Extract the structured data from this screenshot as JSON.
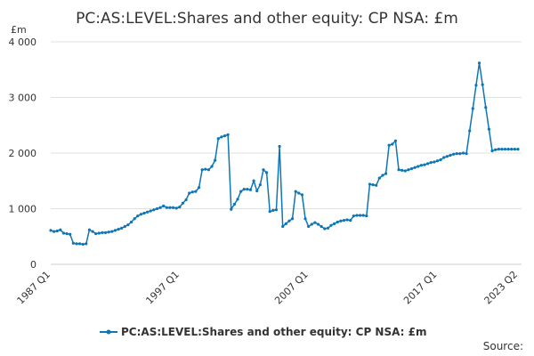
{
  "chart_data": {
    "type": "line",
    "title": "PC:AS:LEVEL:Shares and other equity: CP NSA: £m",
    "y_label": "£m",
    "source": "Source:",
    "categories": [
      "1987 Q1",
      null,
      null,
      null,
      null,
      null,
      null,
      null,
      null,
      null,
      null,
      null,
      null,
      null,
      null,
      null,
      null,
      null,
      null,
      null,
      null,
      null,
      null,
      null,
      null,
      null,
      null,
      null,
      null,
      null,
      null,
      null,
      null,
      null,
      null,
      null,
      null,
      null,
      null,
      null,
      "1997 Q1",
      null,
      null,
      null,
      null,
      null,
      null,
      null,
      null,
      null,
      null,
      null,
      null,
      null,
      null,
      null,
      null,
      null,
      null,
      null,
      null,
      null,
      null,
      null,
      null,
      null,
      null,
      null,
      null,
      null,
      null,
      null,
      null,
      null,
      null,
      null,
      null,
      null,
      null,
      null,
      "2007 Q1",
      null,
      null,
      null,
      null,
      null,
      null,
      null,
      null,
      null,
      null,
      null,
      null,
      null,
      null,
      null,
      null,
      null,
      null,
      null,
      null,
      null,
      null,
      null,
      null,
      null,
      null,
      null,
      null,
      null,
      null,
      null,
      null,
      null,
      null,
      null,
      null,
      null,
      null,
      null,
      "2017 Q1",
      null,
      null,
      null,
      null,
      null,
      null,
      null,
      null,
      null,
      null,
      null,
      null,
      null,
      null,
      null,
      null,
      null,
      null,
      null,
      null,
      null,
      null,
      null,
      null,
      "2023 Q2"
    ],
    "series": [
      {
        "name": "PC:AS:LEVEL:Shares and other equity: CP NSA: £m",
        "color": "#0e76b6",
        "values": [
          610,
          590,
          600,
          620,
          560,
          550,
          540,
          380,
          370,
          370,
          360,
          370,
          620,
          590,
          550,
          560,
          570,
          570,
          580,
          590,
          610,
          630,
          650,
          680,
          710,
          760,
          820,
          870,
          900,
          920,
          940,
          960,
          980,
          1000,
          1020,
          1050,
          1020,
          1020,
          1020,
          1010,
          1030,
          1100,
          1160,
          1280,
          1300,
          1310,
          1380,
          1700,
          1710,
          1700,
          1760,
          1870,
          2260,
          2290,
          2310,
          2330,
          990,
          1080,
          1170,
          1310,
          1350,
          1350,
          1340,
          1500,
          1320,
          1430,
          1700,
          1650,
          950,
          970,
          980,
          2120,
          680,
          730,
          780,
          820,
          1310,
          1280,
          1250,
          820,
          680,
          720,
          750,
          720,
          680,
          640,
          650,
          700,
          730,
          760,
          780,
          790,
          800,
          790,
          870,
          880,
          880,
          880,
          870,
          1440,
          1430,
          1420,
          1550,
          1600,
          1630,
          2140,
          2160,
          2220,
          1700,
          1690,
          1680,
          1700,
          1720,
          1740,
          1760,
          1780,
          1790,
          1810,
          1830,
          1840,
          1860,
          1880,
          1920,
          1940,
          1960,
          1980,
          1990,
          1990,
          2000,
          1990,
          2400,
          2800,
          3220,
          3620,
          3230,
          2820,
          2430,
          2040,
          2060,
          2070,
          2070,
          2070,
          2070,
          2070,
          2070,
          2070
        ]
      }
    ],
    "ylim": [
      0,
      4000
    ],
    "yticks": [
      0,
      {
        "value": 1000,
        "label": "1 000"
      },
      {
        "value": 2000,
        "label": "2 000"
      },
      {
        "value": 3000,
        "label": "3 000"
      },
      {
        "value": 4000,
        "label": "4 000"
      }
    ],
    "grid": true
  }
}
